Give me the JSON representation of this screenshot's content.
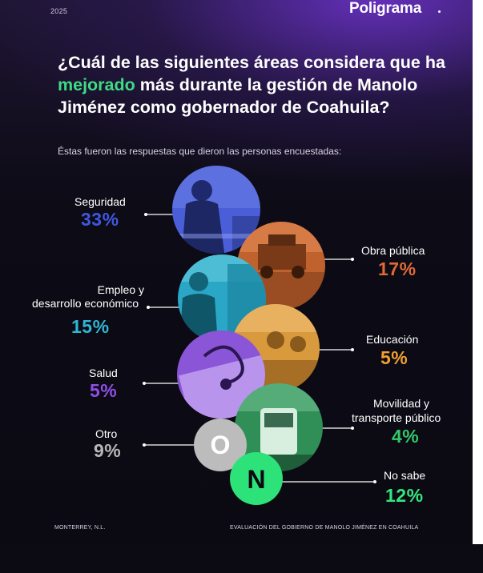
{
  "header": {
    "year": "2025",
    "brand": "Poligrama"
  },
  "title": {
    "before": "¿Cuál de las siguientes áreas considera que ha ",
    "highlight": "mejorado",
    "after": " más durante la gestión de Manolo Jiménez como gobernador de Coahuila?"
  },
  "subtitle": "Éstas fueron las respuestas que dieron las personas encuestadas:",
  "colors": {
    "seguridad": "#3f57e0",
    "obra": "#e06a35",
    "empleo": "#2fb5d4",
    "educacion": "#f0a030",
    "salud": "#8e4fe6",
    "movilidad": "#33c86a",
    "otro": "#b8b8b8",
    "nosabe": "#34e67e",
    "highlight": "#3ddc84"
  },
  "chart_data": {
    "type": "bubble",
    "unit": "%",
    "categories": [
      "Seguridad",
      "Obra pública",
      "Empleo y desarrollo económico",
      "Educación",
      "Salud",
      "Movilidad y transporte público",
      "Otro",
      "No sabe"
    ],
    "values": [
      33,
      17,
      15,
      5,
      5,
      4,
      9,
      12
    ]
  },
  "labels": {
    "seguridad": {
      "name": "Seguridad",
      "value": "33%"
    },
    "obra": {
      "name": "Obra pública",
      "value": "17%"
    },
    "empleo": {
      "name1": "Empleo y",
      "name2": "desarrollo económico",
      "value": "15%"
    },
    "educacion": {
      "name": "Educación",
      "value": "5%"
    },
    "salud": {
      "name": "Salud",
      "value": "5%"
    },
    "movilidad": {
      "name1": "Movilidad y",
      "name2": "transporte público",
      "value": "4%"
    },
    "otro": {
      "name": "Otro",
      "value": "9%",
      "letter": "O"
    },
    "nosabe": {
      "name": "No sabe",
      "value": "12%",
      "letter": "N"
    }
  },
  "footer": {
    "left": "MONTERREY, N.L.",
    "right": "EVALUACIÓN DEL GOBIERNO DE MANOLO JIMÉNEZ EN COAHUILA"
  }
}
